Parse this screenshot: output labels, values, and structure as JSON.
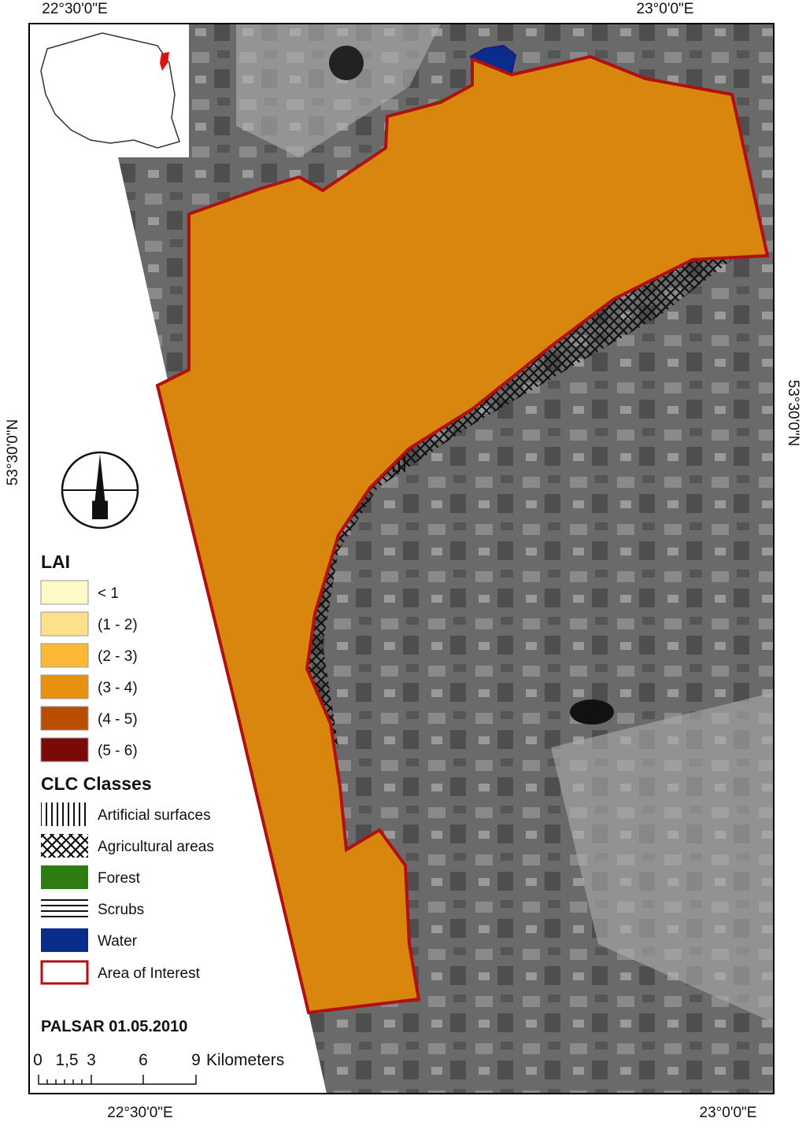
{
  "coordinates": {
    "top_left": "22°30'0\"E",
    "top_right": "23°0'0\"E",
    "bottom_left": "22°30'0\"E",
    "bottom_right": "23°0'0\"E",
    "left": "53°30'0\"N",
    "right": "53°30'0\"N"
  },
  "north_arrow": {
    "label": "N"
  },
  "legend": {
    "lai_title": "LAI",
    "lai_items": [
      "< 1",
      "(1 - 2)",
      "(2 - 3)",
      "(3 - 4)",
      "(4 - 5)",
      "(5 - 6)"
    ],
    "clc_title": "CLC Classes",
    "clc_items": [
      "Artificial surfaces",
      "Agricultural areas",
      "Forest",
      "Scrubs",
      "Water",
      "Area of Interest"
    ]
  },
  "source": "PALSAR 01.05.2010",
  "scale_bar": {
    "labels": [
      "0",
      "1,5",
      "3",
      "6",
      "9"
    ],
    "unit": "Kilometers"
  }
}
